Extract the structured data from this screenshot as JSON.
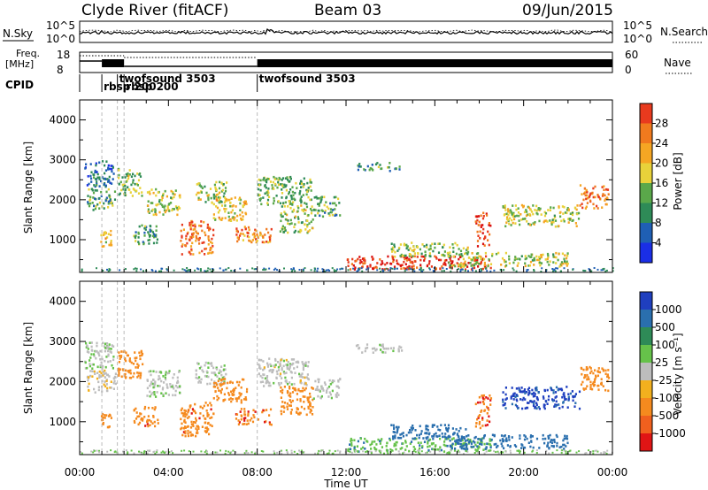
{
  "header": {
    "station": "Clyde River (fitACF)",
    "beam": "Beam 03",
    "date": "09/Jun/2015"
  },
  "noise_panel": {
    "left_label": "N.Sky",
    "right_label": "N.Search",
    "tick_top": "10^5",
    "tick_bottom": "10^0",
    "right_tick_top": "10^5",
    "right_tick_bottom": "10^0"
  },
  "freq_panel": {
    "left_label_1": "Freq.",
    "left_label_2": "[MHz]",
    "right_label": "Nave",
    "left_tick_top": "18",
    "left_tick_bottom": "8",
    "right_tick_top": "60",
    "right_tick_bottom": "0"
  },
  "cpid": {
    "label": "CPID",
    "segments": [
      {
        "name": "rbsp 200",
        "start_hour": 1.0
      },
      {
        "name": "twofsound 3503",
        "start_hour": 1.7
      },
      {
        "name": "rbsp 200",
        "start_hour": 2.0
      },
      {
        "name": "twofsound 3503",
        "start_hour": 8.0
      }
    ]
  },
  "x_axis": {
    "title": "Time UT",
    "tick_labels": [
      "00:00",
      "04:00",
      "08:00",
      "12:00",
      "16:00",
      "20:00",
      "00:00"
    ]
  },
  "power_panel": {
    "ylabel": "Slant Range [km]",
    "y_ticks": [
      "1000",
      "2000",
      "3000",
      "4000"
    ],
    "colorbar_title": "Power [dB]",
    "colorbar_labels": [
      "4",
      "8",
      "12",
      "16",
      "20",
      "24",
      "28"
    ]
  },
  "velocity_panel": {
    "ylabel": "Slant Range [km]",
    "y_ticks": [
      "1000",
      "2000",
      "3000",
      "4000"
    ],
    "colorbar_title": "Velocity [m s⁻¹]",
    "colorbar_labels": [
      "1000",
      "500",
      "100",
      "25",
      "-25",
      "-100",
      "-500",
      "-1000"
    ]
  },
  "colors": {
    "power_scale": [
      "#1a2ee6",
      "#1f5fb4",
      "#2e8b57",
      "#5aa84a",
      "#e8d23a",
      "#f5a623",
      "#f07a1e",
      "#e83a1e",
      "#d90f0f"
    ],
    "velocity_scale": [
      "#1f3fbf",
      "#2a6fae",
      "#2e8b57",
      "#66c24a",
      "#bdbdbd",
      "#f2b01e",
      "#f58a1e",
      "#f0601e",
      "#e01515"
    ]
  },
  "chart_data": [
    {
      "type": "heatmap",
      "panel": "power",
      "x_unit": "hours UT",
      "y_unit": "km",
      "xlim": [
        0,
        24
      ],
      "ylim": [
        180,
        4500
      ],
      "colorbar_range": [
        0,
        30
      ],
      "regions": [
        {
          "t0": 0.2,
          "t1": 1.5,
          "r0": 2350,
          "r1": 3000,
          "level": 5
        },
        {
          "t0": 0.3,
          "t1": 1.6,
          "r0": 1750,
          "r1": 2300,
          "level": 10
        },
        {
          "t0": 0.9,
          "t1": 1.4,
          "r0": 850,
          "r1": 1250,
          "level": 16
        },
        {
          "t0": 1.7,
          "t1": 2.8,
          "r0": 2100,
          "r1": 2800,
          "level": 12
        },
        {
          "t0": 2.4,
          "t1": 3.5,
          "r0": 900,
          "r1": 1400,
          "level": 9
        },
        {
          "t0": 3.0,
          "t1": 4.5,
          "r0": 1650,
          "r1": 2300,
          "level": 14
        },
        {
          "t0": 4.5,
          "t1": 6.0,
          "r0": 650,
          "r1": 1500,
          "level": 23
        },
        {
          "t0": 5.2,
          "t1": 6.6,
          "r0": 1950,
          "r1": 2500,
          "level": 13
        },
        {
          "t0": 6.0,
          "t1": 7.5,
          "r0": 1500,
          "r1": 2100,
          "level": 16
        },
        {
          "t0": 7.0,
          "t1": 8.6,
          "r0": 950,
          "r1": 1350,
          "level": 21
        },
        {
          "t0": 8.0,
          "t1": 10.4,
          "r0": 1900,
          "r1": 2600,
          "level": 11
        },
        {
          "t0": 9.0,
          "t1": 10.5,
          "r0": 1200,
          "r1": 1900,
          "level": 13
        },
        {
          "t0": 10.5,
          "t1": 11.7,
          "r0": 1600,
          "r1": 2100,
          "level": 10
        },
        {
          "t0": 12.4,
          "t1": 14.5,
          "r0": 2750,
          "r1": 2950,
          "level": 9
        },
        {
          "t0": 12.0,
          "t1": 18.5,
          "r0": 280,
          "r1": 620,
          "level": 27
        },
        {
          "t0": 14.0,
          "t1": 17.5,
          "r0": 600,
          "r1": 950,
          "level": 12
        },
        {
          "t0": 17.8,
          "t1": 18.5,
          "r0": 850,
          "r1": 1700,
          "level": 26
        },
        {
          "t0": 16.5,
          "t1": 22.0,
          "r0": 350,
          "r1": 700,
          "level": 14
        },
        {
          "t0": 19.0,
          "t1": 22.5,
          "r0": 1350,
          "r1": 1900,
          "level": 14
        },
        {
          "t0": 22.5,
          "t1": 23.8,
          "r0": 1800,
          "r1": 2400,
          "level": 22
        }
      ]
    },
    {
      "type": "heatmap",
      "panel": "velocity",
      "x_unit": "hours UT",
      "y_unit": "km",
      "xlim": [
        0,
        24
      ],
      "ylim": [
        180,
        4500
      ],
      "colorbar_range": [
        -1000,
        1000
      ],
      "regions": [
        {
          "t0": 0.2,
          "t1": 1.5,
          "r0": 2350,
          "r1": 3000,
          "velocity": 20
        },
        {
          "t0": 0.3,
          "t1": 1.6,
          "r0": 1750,
          "r1": 2300,
          "velocity": -10
        },
        {
          "t0": 0.9,
          "t1": 1.4,
          "r0": 850,
          "r1": 1250,
          "velocity": -150
        },
        {
          "t0": 1.7,
          "t1": 2.8,
          "r0": 2100,
          "r1": 2800,
          "velocity": -200
        },
        {
          "t0": 2.4,
          "t1": 3.5,
          "r0": 900,
          "r1": 1400,
          "velocity": -400
        },
        {
          "t0": 3.0,
          "t1": 4.5,
          "r0": 1650,
          "r1": 2300,
          "velocity": 5
        },
        {
          "t0": 4.5,
          "t1": 6.0,
          "r0": 650,
          "r1": 1500,
          "velocity": -400
        },
        {
          "t0": 5.2,
          "t1": 6.6,
          "r0": 1950,
          "r1": 2500,
          "velocity": 10
        },
        {
          "t0": 6.0,
          "t1": 7.5,
          "r0": 1500,
          "r1": 2100,
          "velocity": -300
        },
        {
          "t0": 7.0,
          "t1": 8.6,
          "r0": 950,
          "r1": 1350,
          "velocity": -450
        },
        {
          "t0": 8.0,
          "t1": 10.4,
          "r0": 1900,
          "r1": 2600,
          "velocity": 0
        },
        {
          "t0": 9.0,
          "t1": 10.5,
          "r0": 1200,
          "r1": 1900,
          "velocity": -250
        },
        {
          "t0": 10.5,
          "t1": 11.7,
          "r0": 1600,
          "r1": 2100,
          "velocity": 10
        },
        {
          "t0": 12.4,
          "t1": 14.5,
          "r0": 2750,
          "r1": 2950,
          "velocity": 5
        },
        {
          "t0": 12.0,
          "t1": 18.5,
          "r0": 280,
          "r1": 620,
          "velocity": 80
        },
        {
          "t0": 14.0,
          "t1": 17.5,
          "r0": 600,
          "r1": 950,
          "velocity": 300
        },
        {
          "t0": 17.8,
          "t1": 18.5,
          "r0": 850,
          "r1": 1700,
          "velocity": -450
        },
        {
          "t0": 16.5,
          "t1": 22.0,
          "r0": 350,
          "r1": 700,
          "velocity": 150
        },
        {
          "t0": 19.0,
          "t1": 22.5,
          "r0": 1350,
          "r1": 1900,
          "velocity": 600
        },
        {
          "t0": 22.5,
          "t1": 23.8,
          "r0": 1800,
          "r1": 2400,
          "velocity": -200
        }
      ]
    }
  ]
}
